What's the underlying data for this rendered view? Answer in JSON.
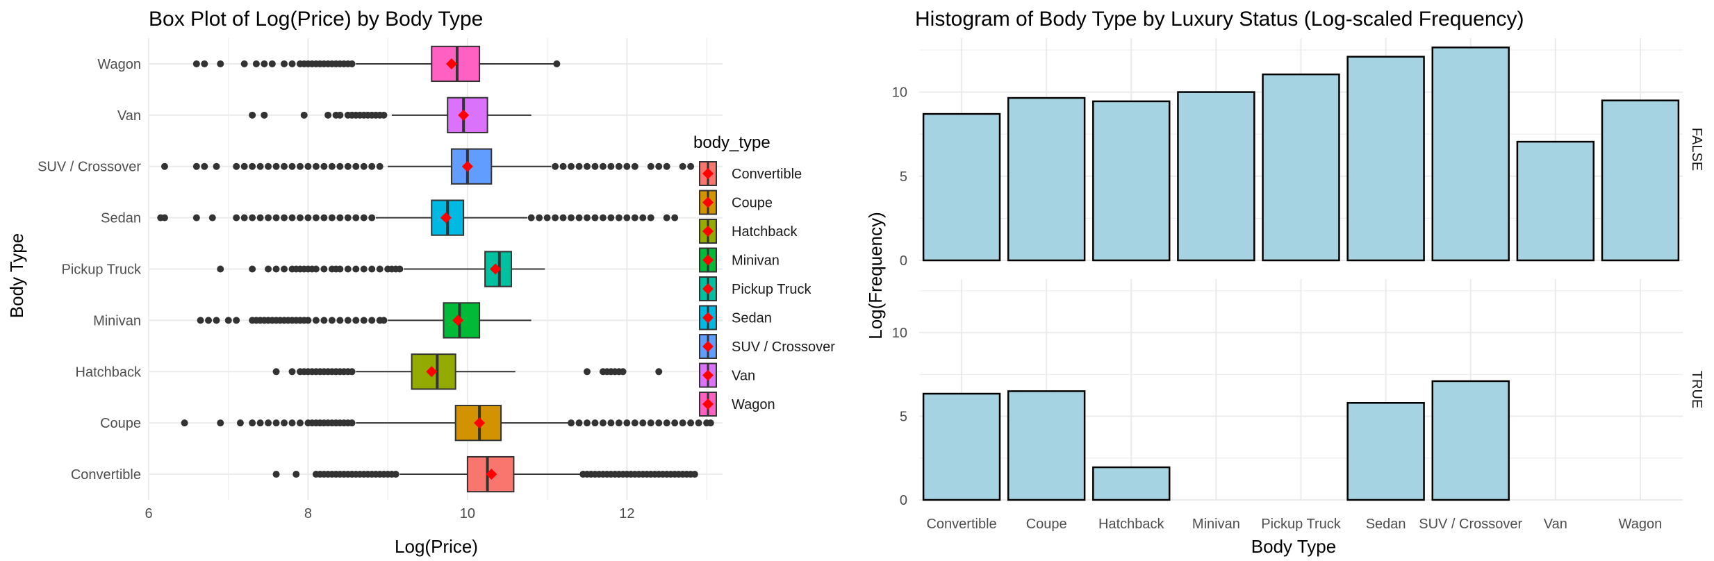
{
  "chart_data": [
    {
      "type": "box",
      "title": "Box Plot of Log(Price) by Body Type",
      "xlabel": "Log(Price)",
      "ylabel": "Body Type",
      "xlim": [
        6,
        13.2
      ],
      "x_ticks": [
        6,
        8,
        10,
        12
      ],
      "legend_title": "body_type",
      "legend_position": "right",
      "grid": true,
      "categories": [
        "Convertible",
        "Coupe",
        "Hatchback",
        "Minivan",
        "Pickup Truck",
        "Sedan",
        "SUV / Crossover",
        "Van",
        "Wagon"
      ],
      "colors": [
        "#F8766D",
        "#D39200",
        "#93AA00",
        "#00BA38",
        "#00C19F",
        "#00B9E3",
        "#619CFF",
        "#DB72FB",
        "#FF61C3"
      ],
      "mean_color": "#ff0000",
      "boxes": [
        {
          "q1": 10.0,
          "median": 10.25,
          "q3": 10.58,
          "whisker_low": 9.15,
          "whisker_high": 11.45,
          "mean": 10.3,
          "outliers": [
            7.6,
            7.85,
            8.1,
            8.15,
            8.2,
            8.25,
            8.3,
            8.35,
            8.4,
            8.45,
            8.5,
            8.55,
            8.6,
            8.65,
            8.7,
            8.75,
            8.8,
            8.85,
            8.9,
            8.95,
            9.0,
            9.05,
            9.1,
            11.45,
            11.5,
            11.55,
            11.6,
            11.65,
            11.7,
            11.75,
            11.8,
            11.85,
            11.9,
            11.95,
            12.0,
            12.05,
            12.1,
            12.15,
            12.2,
            12.25,
            12.3,
            12.35,
            12.4,
            12.45,
            12.5,
            12.55,
            12.6,
            12.65,
            12.7,
            12.75,
            12.8,
            12.85
          ]
        },
        {
          "q1": 9.85,
          "median": 10.15,
          "q3": 10.42,
          "whisker_low": 8.6,
          "whisker_high": 11.3,
          "mean": 10.15,
          "outliers": [
            6.45,
            6.9,
            7.15,
            7.3,
            7.4,
            7.5,
            7.6,
            7.7,
            7.8,
            7.9,
            8.0,
            8.05,
            8.1,
            8.15,
            8.2,
            8.25,
            8.3,
            8.35,
            8.4,
            8.45,
            8.5,
            8.55,
            11.3,
            11.4,
            11.5,
            11.6,
            11.7,
            11.8,
            11.9,
            12.0,
            12.1,
            12.2,
            12.3,
            12.4,
            12.5,
            12.6,
            12.7,
            12.8,
            12.9,
            13.0,
            13.05
          ]
        },
        {
          "q1": 9.3,
          "median": 9.62,
          "q3": 9.85,
          "whisker_low": 8.6,
          "whisker_high": 10.6,
          "mean": 9.55,
          "outliers": [
            7.6,
            7.8,
            7.9,
            7.95,
            8.0,
            8.05,
            8.1,
            8.15,
            8.2,
            8.25,
            8.3,
            8.35,
            8.4,
            8.45,
            8.5,
            8.55,
            11.5,
            11.7,
            11.75,
            11.8,
            11.85,
            11.9,
            11.95,
            12.4
          ]
        },
        {
          "q1": 9.7,
          "median": 9.9,
          "q3": 10.15,
          "whisker_low": 9.0,
          "whisker_high": 10.8,
          "mean": 9.88,
          "outliers": [
            6.65,
            6.75,
            6.85,
            7.0,
            7.1,
            7.3,
            7.35,
            7.4,
            7.45,
            7.5,
            7.55,
            7.6,
            7.65,
            7.7,
            7.75,
            7.8,
            7.85,
            7.9,
            7.95,
            8.0,
            8.1,
            8.2,
            8.3,
            8.4,
            8.5,
            8.6,
            8.7,
            8.8,
            8.9,
            8.95
          ]
        },
        {
          "q1": 10.22,
          "median": 10.4,
          "q3": 10.55,
          "whisker_low": 9.2,
          "whisker_high": 10.97,
          "mean": 10.35,
          "outliers": [
            6.9,
            7.3,
            7.5,
            7.6,
            7.7,
            7.8,
            7.85,
            7.9,
            7.95,
            8.0,
            8.05,
            8.1,
            8.2,
            8.3,
            8.35,
            8.4,
            8.5,
            8.6,
            8.7,
            8.8,
            8.9,
            9.0,
            9.05,
            9.1,
            9.15
          ]
        },
        {
          "q1": 9.55,
          "median": 9.75,
          "q3": 9.95,
          "whisker_low": 8.85,
          "whisker_high": 10.75,
          "mean": 9.73,
          "outliers": [
            6.15,
            6.2,
            6.6,
            6.8,
            7.1,
            7.2,
            7.3,
            7.4,
            7.5,
            7.6,
            7.7,
            7.8,
            7.9,
            8.0,
            8.1,
            8.2,
            8.3,
            8.4,
            8.5,
            8.6,
            8.7,
            8.8,
            10.8,
            10.9,
            11.0,
            11.1,
            11.2,
            11.3,
            11.4,
            11.5,
            11.6,
            11.7,
            11.8,
            11.9,
            12.0,
            12.1,
            12.2,
            12.3,
            12.5,
            12.6
          ]
        },
        {
          "q1": 9.8,
          "median": 10.0,
          "q3": 10.3,
          "whisker_low": 9.0,
          "whisker_high": 11.05,
          "mean": 10.0,
          "outliers": [
            6.2,
            6.6,
            6.7,
            6.85,
            7.1,
            7.2,
            7.3,
            7.4,
            7.5,
            7.6,
            7.7,
            7.8,
            7.9,
            8.0,
            8.1,
            8.2,
            8.3,
            8.4,
            8.5,
            8.6,
            8.7,
            8.8,
            8.9,
            11.1,
            11.2,
            11.3,
            11.4,
            11.5,
            11.6,
            11.7,
            11.8,
            11.9,
            12.0,
            12.1,
            12.3,
            12.4,
            12.5,
            12.7,
            12.8
          ]
        },
        {
          "q1": 9.75,
          "median": 9.95,
          "q3": 10.25,
          "whisker_low": 9.05,
          "whisker_high": 10.8,
          "mean": 9.95,
          "outliers": [
            7.3,
            7.45,
            7.95,
            8.25,
            8.35,
            8.4,
            8.5,
            8.55,
            8.6,
            8.65,
            8.7,
            8.75,
            8.8,
            8.85,
            8.9,
            8.95
          ]
        },
        {
          "q1": 9.55,
          "median": 9.87,
          "q3": 10.15,
          "whisker_low": 8.6,
          "whisker_high": 11.1,
          "mean": 9.8,
          "outliers": [
            6.6,
            6.7,
            6.9,
            7.2,
            7.35,
            7.45,
            7.55,
            7.7,
            7.8,
            7.9,
            7.95,
            8.0,
            8.05,
            8.1,
            8.15,
            8.2,
            8.25,
            8.3,
            8.35,
            8.4,
            8.45,
            8.5,
            8.55,
            11.12
          ]
        }
      ]
    },
    {
      "type": "bar",
      "title": "Histogram of Body Type by Luxury Status (Log-scaled Frequency)",
      "xlabel": "Body Type",
      "ylabel": "Log(Frequency)",
      "ylim": [
        0,
        13.2
      ],
      "y_ticks": [
        0,
        5,
        10
      ],
      "grid": true,
      "bar_fill": "#A6D3E1",
      "bar_stroke": "#000000",
      "categories": [
        "Convertible",
        "Coupe",
        "Hatchback",
        "Minivan",
        "Pickup Truck",
        "Sedan",
        "SUV / Crossover",
        "Van",
        "Wagon"
      ],
      "facets": [
        {
          "label": "FALSE",
          "values": [
            8.7,
            9.65,
            9.45,
            10.0,
            11.05,
            12.1,
            12.65,
            7.05,
            9.5
          ]
        },
        {
          "label": "TRUE",
          "values": [
            6.35,
            6.5,
            1.95,
            null,
            null,
            5.8,
            7.1,
            null,
            null
          ]
        }
      ]
    }
  ]
}
